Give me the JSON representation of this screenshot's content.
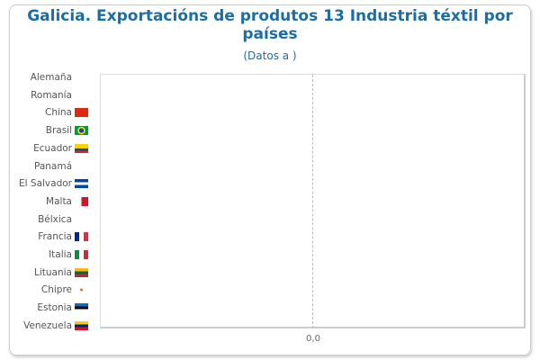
{
  "chart_data": {
    "type": "bar",
    "orientation": "horizontal",
    "title": "Galicia. Exportacións de produtos 13 Industria téxtil por países",
    "subtitle": "(Datos a )",
    "categories": [
      "Alemaña",
      "Romanía",
      "China",
      "Brasil",
      "Ecuador",
      "Panamá",
      "El Salvador",
      "Malta",
      "Bélxica",
      "Francia",
      "Italia",
      "Lituania",
      "Chipre",
      "Estonia",
      "Venezuela"
    ],
    "flags": [
      "",
      "",
      "china-flag",
      "brazil-flag",
      "ecuador-flag",
      "",
      "el-salvador-flag",
      "malta-flag",
      "",
      "france-flag",
      "italy-flag",
      "lithuania-flag",
      "cyprus-flag",
      "estonia-flag",
      "venezuela-flag"
    ],
    "values": [
      0,
      0,
      0,
      0,
      0,
      0,
      0,
      0,
      0,
      0,
      0,
      0,
      0,
      0,
      0
    ],
    "xticks": [
      "0,0"
    ],
    "grid": true,
    "bar_color": "#1a6ea8"
  }
}
